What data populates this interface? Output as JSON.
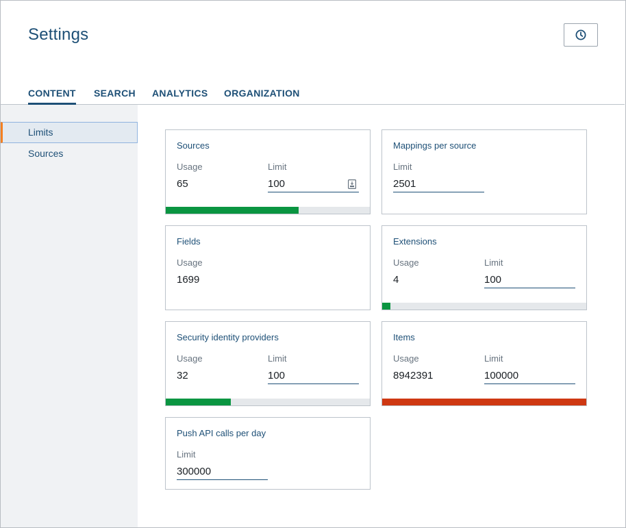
{
  "header": {
    "title": "Settings"
  },
  "tabs": [
    {
      "label": "CONTENT",
      "active": true
    },
    {
      "label": "SEARCH",
      "active": false
    },
    {
      "label": "ANALYTICS",
      "active": false
    },
    {
      "label": "ORGANIZATION",
      "active": false
    }
  ],
  "sidebar": {
    "items": [
      {
        "label": "Limits",
        "active": true
      },
      {
        "label": "Sources",
        "active": false
      }
    ]
  },
  "colors": {
    "ok": "#0a9541",
    "over": "#ce3812",
    "track": "#e5e8eb",
    "accent": "#f58020"
  },
  "cards": {
    "sources": {
      "title": "Sources",
      "usage_label": "Usage",
      "usage": "65",
      "limit_label": "Limit",
      "limit": "100",
      "usage_ratio": 0.65
    },
    "mappings": {
      "title": "Mappings per source",
      "limit_label": "Limit",
      "limit": "2501"
    },
    "fields": {
      "title": "Fields",
      "usage_label": "Usage",
      "usage": "1699"
    },
    "extensions": {
      "title": "Extensions",
      "usage_label": "Usage",
      "usage": "4",
      "limit_label": "Limit",
      "limit": "100",
      "usage_ratio": 0.04
    },
    "security": {
      "title": "Security identity providers",
      "usage_label": "Usage",
      "usage": "32",
      "limit_label": "Limit",
      "limit": "100",
      "usage_ratio": 0.32
    },
    "items": {
      "title": "Items",
      "usage_label": "Usage",
      "usage": "8942391",
      "limit_label": "Limit",
      "limit": "100000",
      "usage_ratio": 1.0
    },
    "push_api": {
      "title": "Push API calls per day",
      "limit_label": "Limit",
      "limit": "300000"
    }
  }
}
